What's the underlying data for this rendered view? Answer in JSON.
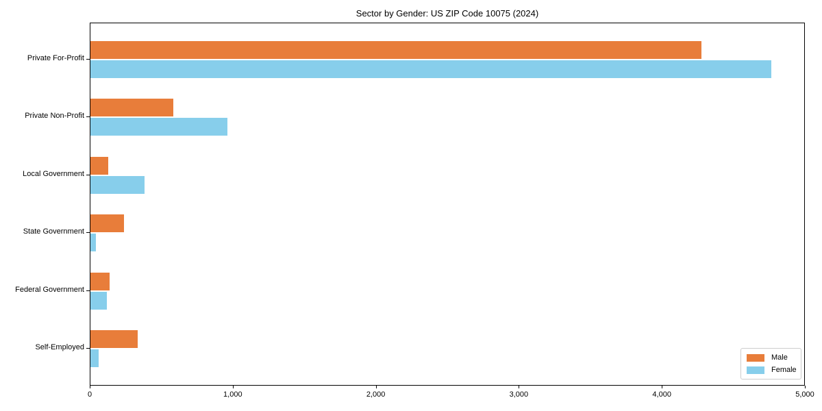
{
  "title": "Sector by Gender: US ZIP Code 10075 (2024)",
  "colors": {
    "male": "#e87d3a",
    "female": "#87ceeb",
    "spine": "#000000",
    "legend_border": "#cccccc",
    "background": "#ffffff"
  },
  "chart_data": {
    "type": "bar",
    "orientation": "horizontal",
    "title": "Sector by Gender: US ZIP Code 10075 (2024)",
    "categories": [
      "Private For-Profit",
      "Private Non-Profit",
      "Local Government",
      "State Government",
      "Federal Government",
      "Self-Employed"
    ],
    "series": [
      {
        "name": "Male",
        "color": "#e87d3a",
        "values": [
          4270,
          580,
          125,
          235,
          135,
          330
        ]
      },
      {
        "name": "Female",
        "color": "#87ceeb",
        "values": [
          4760,
          960,
          380,
          40,
          115,
          55
        ]
      }
    ],
    "xlabel": "",
    "ylabel": "",
    "xlim": [
      0,
      5000
    ],
    "x_ticks": [
      0,
      1000,
      2000,
      3000,
      4000,
      5000
    ],
    "x_tick_labels": [
      "0",
      "1,000",
      "2,000",
      "3,000",
      "4,000",
      "5,000"
    ],
    "grid": false,
    "legend_position": "lower right"
  },
  "legend": {
    "items": [
      {
        "label": "Male"
      },
      {
        "label": "Female"
      }
    ]
  }
}
